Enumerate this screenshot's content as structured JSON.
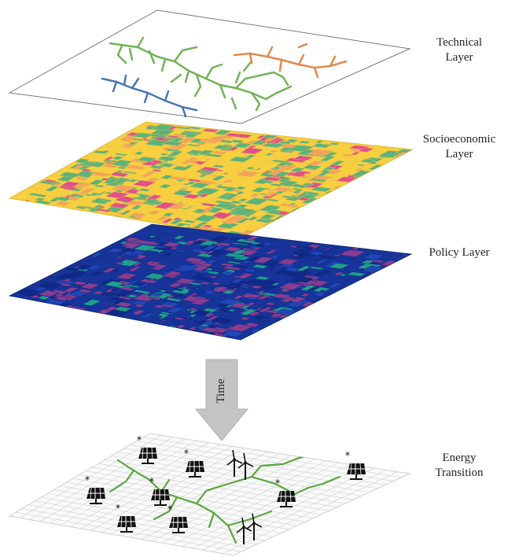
{
  "layers": [
    {
      "id": "technical",
      "label": "Technical\nLayer"
    },
    {
      "id": "socioeconomic",
      "label": "Socioeconomic\nLayer"
    },
    {
      "id": "policy",
      "label": "Policy Layer"
    }
  ],
  "arrow": {
    "label": "Time"
  },
  "result": {
    "label": "Energy\nTransition"
  },
  "colors": {
    "socio_base": "#f7cf3f",
    "socio_green": "#5bb37a",
    "socio_orange": "#f3a35a",
    "socio_pink": "#e0508a",
    "policy_base": "#17349a",
    "policy_purple": "#8a3d8f",
    "policy_teal": "#1f9f8a",
    "network_green": "#5aa63c",
    "network_blue": "#2a5fa8",
    "network_orange": "#d9762d",
    "arrow_gray": "#c4c4c4"
  },
  "icons": [
    "solar-panel-icon",
    "wind-turbine-icon"
  ]
}
